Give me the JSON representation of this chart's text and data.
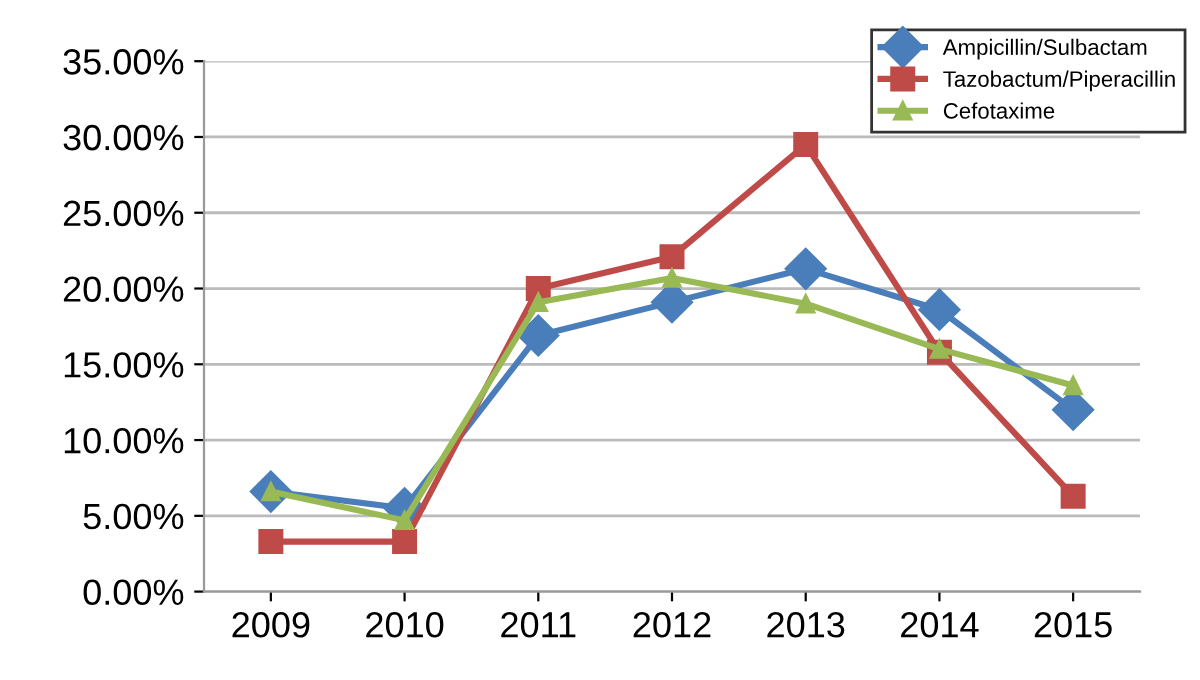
{
  "chart_data": {
    "type": "line",
    "categories": [
      "2009",
      "2010",
      "2011",
      "2012",
      "2013",
      "2014",
      "2015"
    ],
    "series": [
      {
        "name": "Ampicillin/Sulbactam",
        "color": "#4a7ebb",
        "marker": "diamond",
        "values": [
          6.6,
          5.5,
          16.9,
          19.1,
          21.3,
          18.6,
          12.0
        ]
      },
      {
        "name": "Tazobactum/Piperacillin",
        "color": "#be4b48",
        "marker": "square",
        "values": [
          3.3,
          3.3,
          20.0,
          22.1,
          29.5,
          15.8,
          6.3
        ]
      },
      {
        "name": "Cefotaxime",
        "color": "#98b954",
        "marker": "triangle",
        "values": [
          6.6,
          4.7,
          19.1,
          20.7,
          19.0,
          16.0,
          13.6
        ]
      }
    ],
    "ylim": [
      0,
      35
    ],
    "yticks": [
      {
        "value": 0,
        "label": "0.00%"
      },
      {
        "value": 5,
        "label": "5.00%"
      },
      {
        "value": 10,
        "label": "10.00%"
      },
      {
        "value": 15,
        "label": "15.00%"
      },
      {
        "value": 20,
        "label": "20.00%"
      },
      {
        "value": 25,
        "label": "25.00%"
      },
      {
        "value": 30,
        "label": "30.00%"
      },
      {
        "value": 35,
        "label": "35.00%"
      }
    ],
    "grid": "y",
    "legend": "top right",
    "line_style": "solid"
  }
}
